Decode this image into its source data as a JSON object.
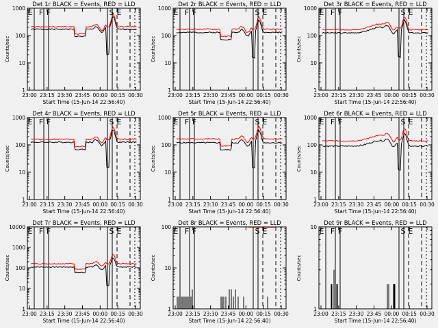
{
  "figure": {
    "xlabel": "Start Time (15-Jun-14 22:56:40)",
    "ylabel": "Counts/sec",
    "x_ticks": [
      "23:00",
      "23:15",
      "23:30",
      "23:45",
      "00:00",
      "00:15",
      "00:30"
    ],
    "flag_labels": [
      "E",
      "F",
      "F",
      "S",
      "E"
    ]
  },
  "chart_data": [
    {
      "type": "line",
      "title": "Det 1r BLACK = Events, RED = LLD",
      "yscale": "log",
      "ylim": [
        1,
        1000
      ],
      "y_ticks": [
        "1",
        "10",
        "100",
        "1000"
      ],
      "profile": "std",
      "series": [
        {
          "color": "#000000",
          "base": 170
        },
        {
          "color": "#ff0000",
          "base": 210
        }
      ]
    },
    {
      "type": "line",
      "title": "Det 2r BLACK = Events, RED = LLD",
      "yscale": "log",
      "ylim": [
        1,
        1000
      ],
      "y_ticks": [
        "1",
        "10",
        "100",
        "1000"
      ],
      "profile": "std",
      "series": [
        {
          "color": "#000000",
          "base": 130
        },
        {
          "color": "#ff0000",
          "base": 170
        }
      ]
    },
    {
      "type": "line",
      "title": "Det 3r BLACK = Events, RED = LLD",
      "yscale": "log",
      "ylim": [
        1,
        1000
      ],
      "y_ticks": [
        "1",
        "10",
        "100",
        "1000"
      ],
      "profile": "hump",
      "series": [
        {
          "color": "#000000",
          "base": 125
        },
        {
          "color": "#ff0000",
          "base": 165
        }
      ]
    },
    {
      "type": "line",
      "title": "Det 4r BLACK = Events, RED = LLD",
      "yscale": "log",
      "ylim": [
        1,
        1000
      ],
      "y_ticks": [
        "1",
        "10",
        "100",
        "1000"
      ],
      "profile": "std",
      "series": [
        {
          "color": "#000000",
          "base": 125
        },
        {
          "color": "#ff0000",
          "base": 160
        }
      ]
    },
    {
      "type": "line",
      "title": "Det 5r BLACK = Events, RED = LLD",
      "yscale": "log",
      "ylim": [
        1,
        1000
      ],
      "y_ticks": [
        "1",
        "10",
        "100",
        "1000"
      ],
      "profile": "std",
      "series": [
        {
          "color": "#000000",
          "base": 120
        },
        {
          "color": "#ff0000",
          "base": 165
        }
      ]
    },
    {
      "type": "line",
      "title": "Det 6r BLACK = Events, RED = LLD",
      "yscale": "log",
      "ylim": [
        1,
        1000
      ],
      "y_ticks": [
        "1",
        "10",
        "100",
        "1000"
      ],
      "profile": "hump",
      "series": [
        {
          "color": "#000000",
          "base": 90
        },
        {
          "color": "#ff0000",
          "base": 140
        }
      ]
    },
    {
      "type": "line",
      "title": "Det 7r BLACK = Events, RED = LLD",
      "yscale": "log",
      "ylim": [
        1,
        10000
      ],
      "y_ticks": [
        "1",
        "10",
        "100",
        "1000",
        "10000"
      ],
      "profile": "std",
      "series": [
        {
          "color": "#000000",
          "base": 110
        },
        {
          "color": "#ff0000",
          "base": 160
        }
      ]
    },
    {
      "type": "line",
      "title": "Det 8r BLACK = Events, RED = LLD",
      "yscale": "log",
      "ylim": [
        1,
        100
      ],
      "y_ticks": [
        "1",
        "10",
        "100"
      ],
      "profile": "sparse8",
      "series": [
        {
          "color": "#000000",
          "base": 1
        },
        {
          "color": "#ff0000",
          "base": 100
        }
      ]
    },
    {
      "type": "line",
      "title": "Det 9r BLACK = Events, RED = LLD",
      "yscale": "log",
      "ylim": [
        1,
        10
      ],
      "y_ticks": [
        "1",
        "10"
      ],
      "profile": "sparse9",
      "series": [
        {
          "color": "#000000",
          "base": 1
        }
      ]
    }
  ]
}
